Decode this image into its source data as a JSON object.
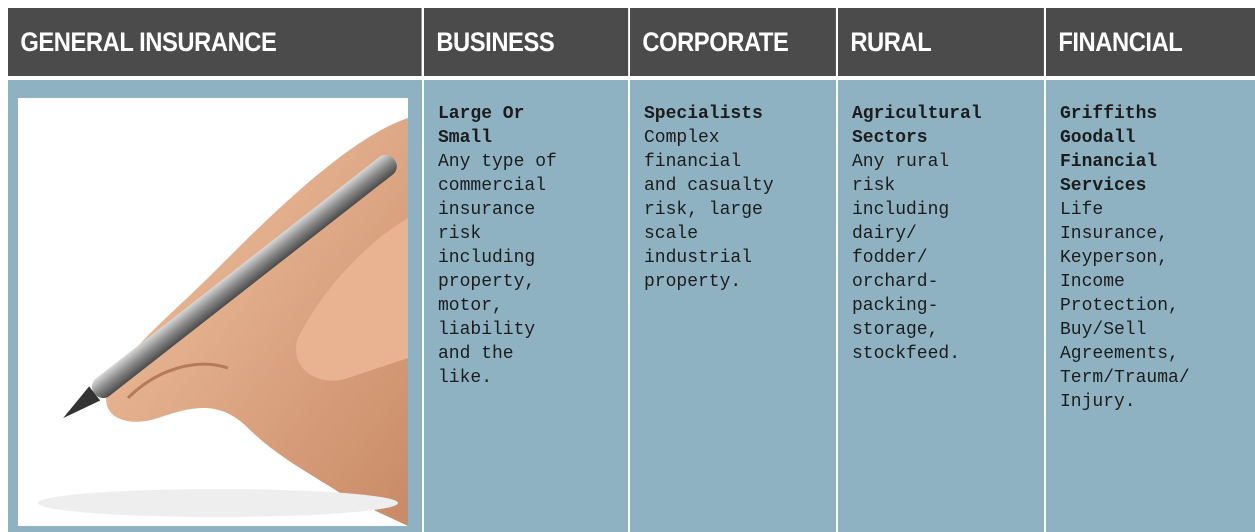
{
  "header": {
    "columns": [
      "GENERAL INSURANCE",
      "BUSINESS",
      "CORPORATE",
      "RURAL",
      "FINANCIAL"
    ]
  },
  "panels": [
    {
      "title": "Large Or Small",
      "text": "Any type of commercial insurance risk including property, motor, liability and the like."
    },
    {
      "title": "Specialists",
      "text": "Complex financial and casualty risk, large scale industrial property."
    },
    {
      "title": "Agricultural Sectors",
      "text": "Any rural risk including dairy/ fodder/ orchard-packing-storage, stockfeed."
    },
    {
      "title": "Griffiths Goodall Financial Services",
      "text": "Life Insurance, Keyperson, Income Protection, Buy/Sell Agreements, Term/Trauma/ Injury."
    }
  ]
}
